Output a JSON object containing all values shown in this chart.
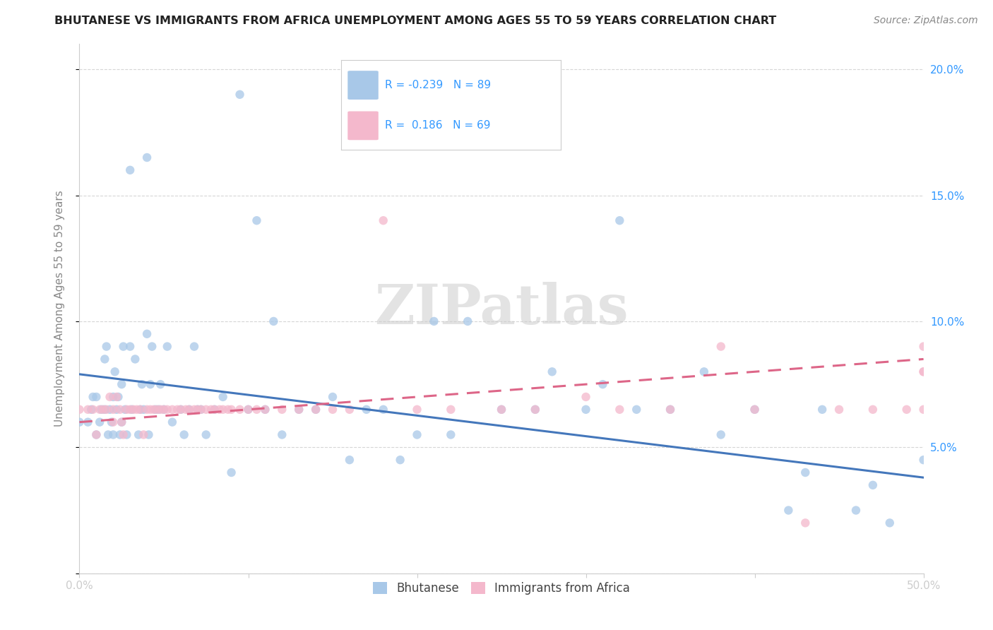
{
  "title": "BHUTANESE VS IMMIGRANTS FROM AFRICA UNEMPLOYMENT AMONG AGES 55 TO 59 YEARS CORRELATION CHART",
  "source": "Source: ZipAtlas.com",
  "ylabel": "Unemployment Among Ages 55 to 59 years",
  "xlim": [
    0.0,
    0.5
  ],
  "ylim": [
    0.0,
    0.21
  ],
  "xticks": [
    0.0,
    0.1,
    0.2,
    0.3,
    0.4,
    0.5
  ],
  "xticklabels": [
    "0.0%",
    "",
    "",
    "",
    "",
    "50.0%"
  ],
  "yticks": [
    0.0,
    0.05,
    0.1,
    0.15,
    0.2
  ],
  "yticklabels_right": [
    "",
    "5.0%",
    "10.0%",
    "15.0%",
    "20.0%"
  ],
  "legend_r1": "R = -0.239",
  "legend_n1": "N = 89",
  "legend_r2": "R =  0.186",
  "legend_n2": "N = 69",
  "color_blue": "#a8c8e8",
  "color_pink": "#f4b8cc",
  "color_blue_line": "#4477bb",
  "color_pink_line": "#dd6688",
  "watermark": "ZIPatlas",
  "blue_line_x0": 0.0,
  "blue_line_y0": 0.079,
  "blue_line_x1": 0.5,
  "blue_line_y1": 0.038,
  "pink_line_x0": 0.0,
  "pink_line_y0": 0.06,
  "pink_line_x1": 0.5,
  "pink_line_y1": 0.085,
  "bhutanese_x": [
    0.0,
    0.005,
    0.007,
    0.008,
    0.01,
    0.01,
    0.012,
    0.013,
    0.015,
    0.015,
    0.016,
    0.017,
    0.018,
    0.019,
    0.02,
    0.02,
    0.021,
    0.022,
    0.023,
    0.024,
    0.025,
    0.025,
    0.026,
    0.027,
    0.028,
    0.03,
    0.03,
    0.031,
    0.033,
    0.035,
    0.036,
    0.037,
    0.038,
    0.04,
    0.04,
    0.041,
    0.042,
    0.043,
    0.045,
    0.047,
    0.048,
    0.05,
    0.052,
    0.055,
    0.06,
    0.062,
    0.065,
    0.068,
    0.07,
    0.072,
    0.075,
    0.08,
    0.085,
    0.09,
    0.095,
    0.1,
    0.105,
    0.11,
    0.115,
    0.12,
    0.13,
    0.14,
    0.15,
    0.16,
    0.17,
    0.18,
    0.19,
    0.2,
    0.21,
    0.22,
    0.23,
    0.25,
    0.27,
    0.28,
    0.3,
    0.31,
    0.32,
    0.33,
    0.35,
    0.37,
    0.38,
    0.4,
    0.42,
    0.43,
    0.44,
    0.46,
    0.47,
    0.48,
    0.5
  ],
  "bhutanese_y": [
    0.06,
    0.06,
    0.065,
    0.07,
    0.055,
    0.07,
    0.06,
    0.065,
    0.065,
    0.085,
    0.09,
    0.055,
    0.065,
    0.06,
    0.055,
    0.07,
    0.08,
    0.065,
    0.07,
    0.055,
    0.06,
    0.075,
    0.09,
    0.065,
    0.055,
    0.16,
    0.09,
    0.065,
    0.085,
    0.055,
    0.065,
    0.075,
    0.065,
    0.095,
    0.165,
    0.055,
    0.075,
    0.09,
    0.065,
    0.065,
    0.075,
    0.065,
    0.09,
    0.06,
    0.065,
    0.055,
    0.065,
    0.09,
    0.065,
    0.065,
    0.055,
    0.065,
    0.07,
    0.04,
    0.19,
    0.065,
    0.14,
    0.065,
    0.1,
    0.055,
    0.065,
    0.065,
    0.07,
    0.045,
    0.065,
    0.065,
    0.045,
    0.055,
    0.1,
    0.055,
    0.1,
    0.065,
    0.065,
    0.08,
    0.065,
    0.075,
    0.14,
    0.065,
    0.065,
    0.08,
    0.055,
    0.065,
    0.025,
    0.04,
    0.065,
    0.025,
    0.035,
    0.02,
    0.045
  ],
  "africa_x": [
    0.0,
    0.005,
    0.008,
    0.01,
    0.012,
    0.014,
    0.016,
    0.018,
    0.02,
    0.02,
    0.022,
    0.024,
    0.025,
    0.026,
    0.028,
    0.03,
    0.032,
    0.034,
    0.036,
    0.038,
    0.04,
    0.042,
    0.044,
    0.046,
    0.048,
    0.05,
    0.052,
    0.055,
    0.058,
    0.06,
    0.063,
    0.065,
    0.068,
    0.07,
    0.072,
    0.075,
    0.078,
    0.08,
    0.083,
    0.085,
    0.088,
    0.09,
    0.095,
    0.1,
    0.105,
    0.11,
    0.12,
    0.13,
    0.14,
    0.15,
    0.16,
    0.18,
    0.2,
    0.22,
    0.25,
    0.27,
    0.3,
    0.32,
    0.35,
    0.38,
    0.4,
    0.43,
    0.45,
    0.47,
    0.49,
    0.5,
    0.5,
    0.5,
    0.5
  ],
  "africa_y": [
    0.065,
    0.065,
    0.065,
    0.055,
    0.065,
    0.065,
    0.065,
    0.07,
    0.065,
    0.06,
    0.07,
    0.065,
    0.06,
    0.055,
    0.065,
    0.065,
    0.065,
    0.065,
    0.065,
    0.055,
    0.065,
    0.065,
    0.065,
    0.065,
    0.065,
    0.065,
    0.065,
    0.065,
    0.065,
    0.065,
    0.065,
    0.065,
    0.065,
    0.065,
    0.065,
    0.065,
    0.065,
    0.065,
    0.065,
    0.065,
    0.065,
    0.065,
    0.065,
    0.065,
    0.065,
    0.065,
    0.065,
    0.065,
    0.065,
    0.065,
    0.065,
    0.14,
    0.065,
    0.065,
    0.065,
    0.065,
    0.07,
    0.065,
    0.065,
    0.09,
    0.065,
    0.02,
    0.065,
    0.065,
    0.065,
    0.065,
    0.08,
    0.08,
    0.09
  ]
}
